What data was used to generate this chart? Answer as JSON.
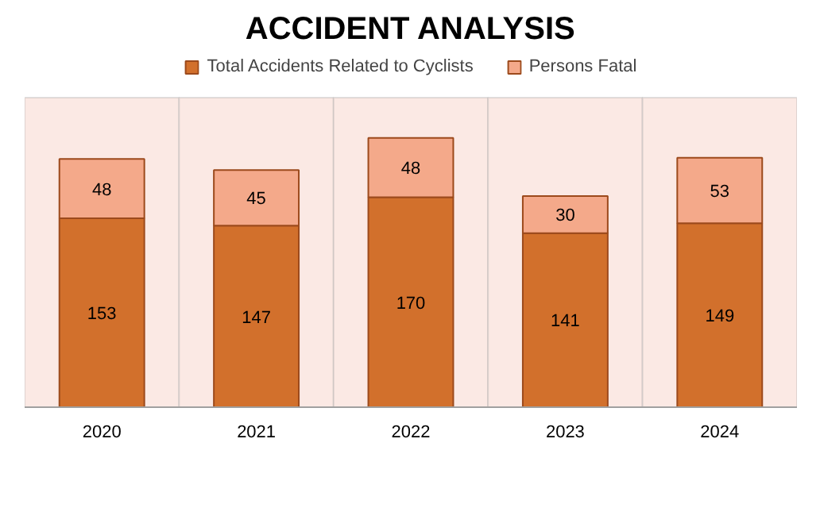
{
  "chart_data": {
    "type": "bar",
    "title": "ACCIDENT ANALYSIS",
    "categories": [
      "2020",
      "2021",
      "2022",
      "2023",
      "2024"
    ],
    "stacked": true,
    "data_labels": true,
    "legend": "top",
    "series": [
      {
        "name": "Total Accidents Related to Cyclists",
        "color": "#d2702c",
        "values": [
          153,
          147,
          170,
          141,
          149
        ]
      },
      {
        "name": "Persons Fatal",
        "color": "#f4a98a",
        "values": [
          48,
          45,
          48,
          30,
          53
        ]
      }
    ]
  }
}
